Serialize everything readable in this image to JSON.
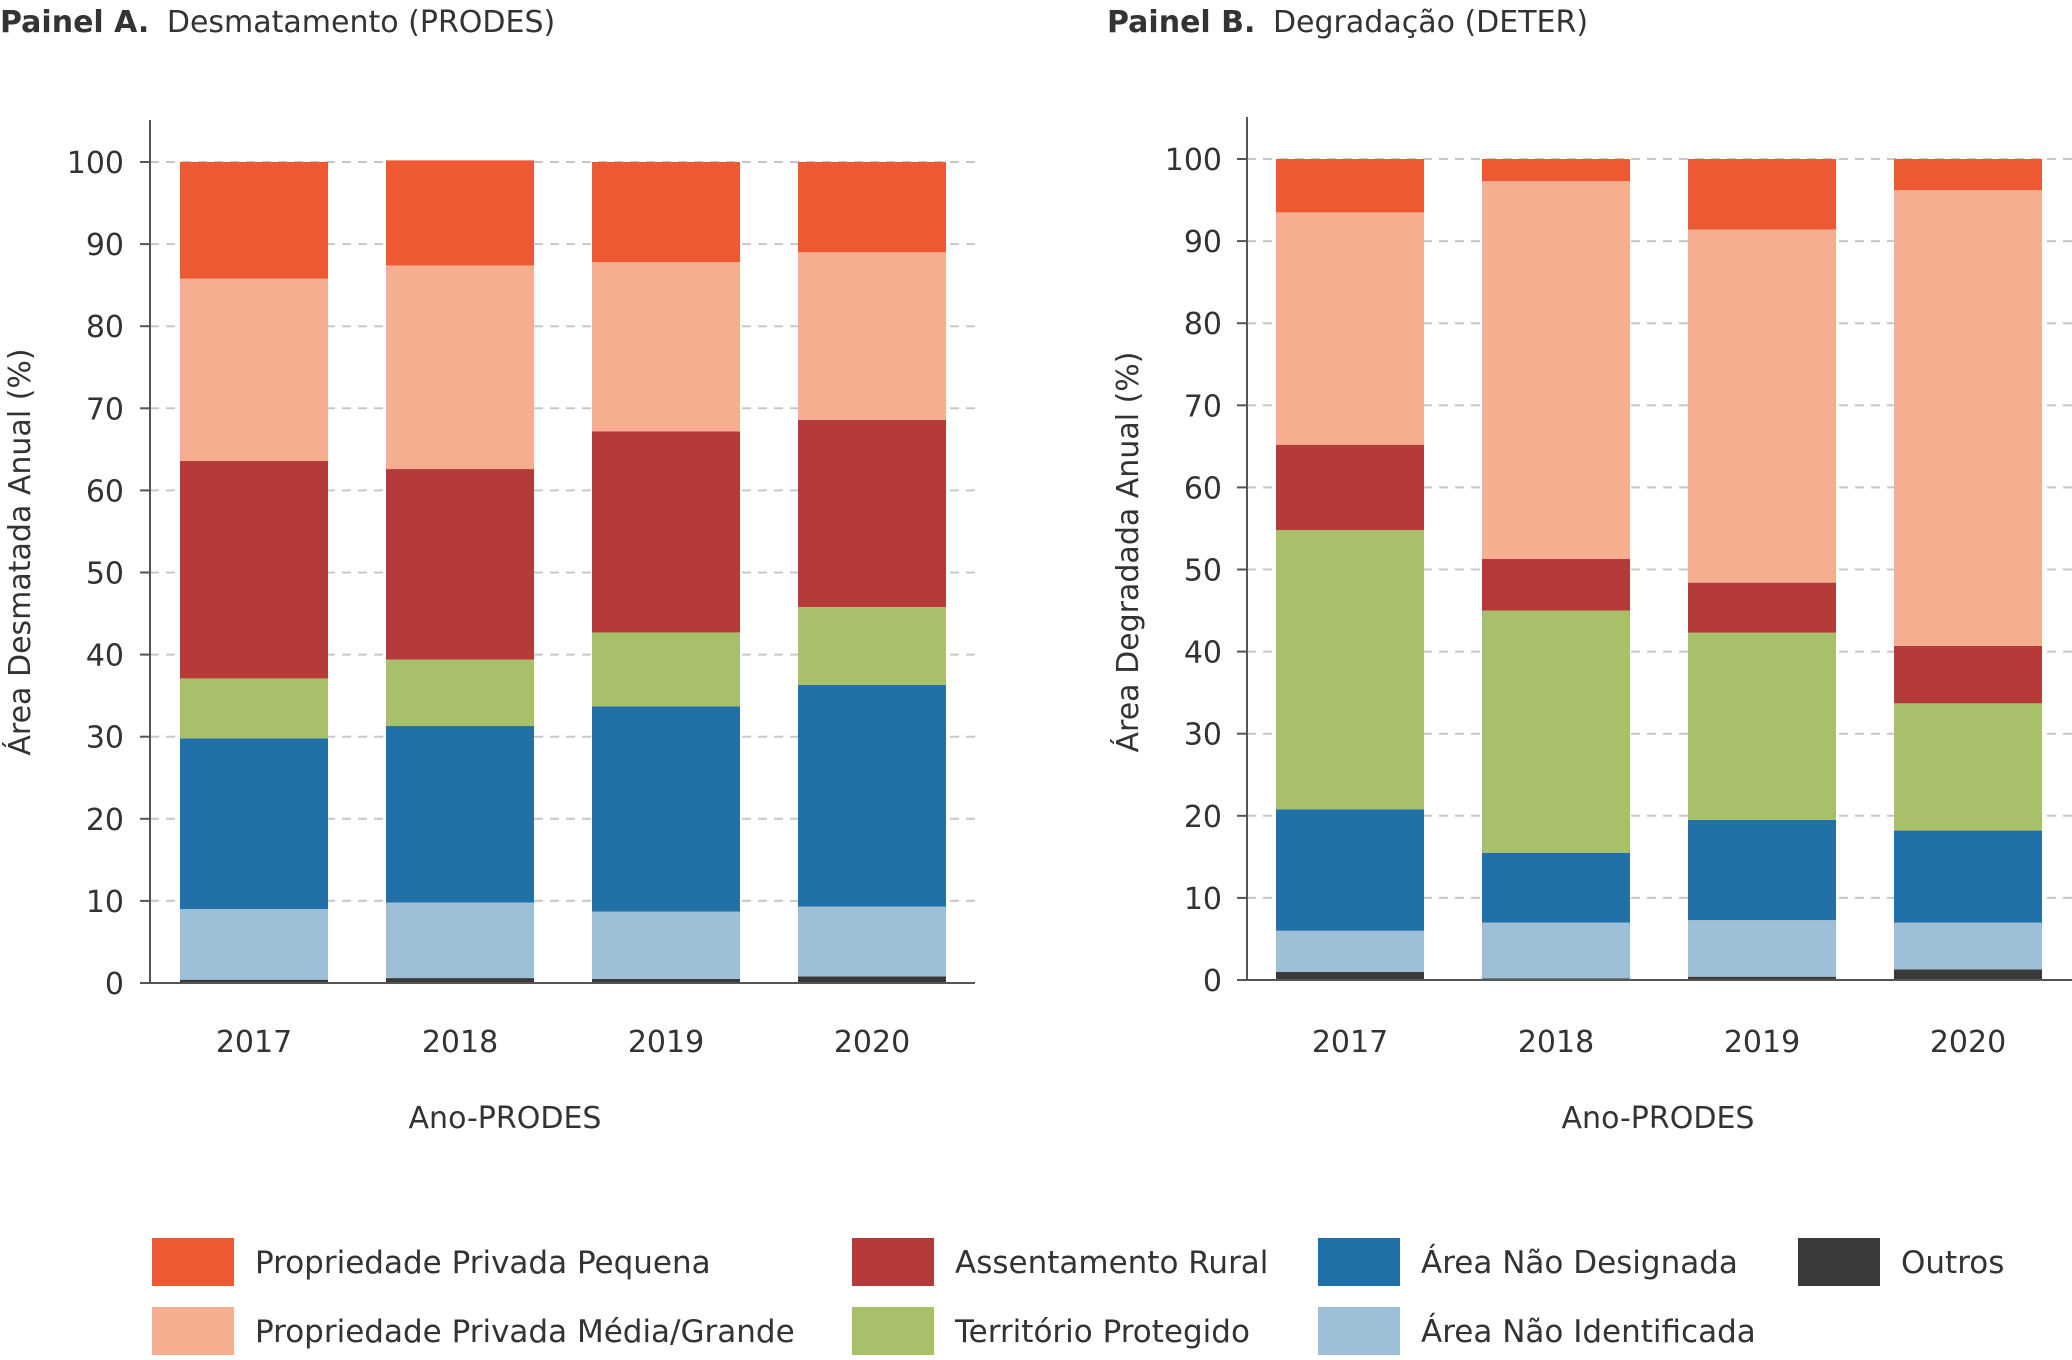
{
  "chart_data": [
    {
      "type": "bar",
      "stacked": true,
      "title_bold": "Painel A.",
      "title": "Desmatamento (PRODES)",
      "xlabel": "Ano-PRODES",
      "ylabel": "Área Desmatada Anual (%)",
      "ylim": [
        0,
        100
      ],
      "yticks": [
        0,
        10,
        20,
        30,
        40,
        50,
        60,
        70,
        80,
        90,
        100
      ],
      "grid": "horizontal-dashed",
      "categories": [
        "2017",
        "2018",
        "2019",
        "2020"
      ],
      "series": [
        {
          "name": "Outros",
          "color": "#3a3a3a",
          "values": [
            0.4,
            0.6,
            0.5,
            0.8
          ]
        },
        {
          "name": "Área Não Identificada",
          "color": "#9ebfd8",
          "values": [
            8.6,
            9.2,
            8.2,
            8.5
          ]
        },
        {
          "name": "Área Não Designada",
          "color": "#2170a8",
          "values": [
            20.8,
            21.5,
            25.0,
            27.0
          ]
        },
        {
          "name": "Território Protegido",
          "color": "#a9c06b",
          "values": [
            7.3,
            8.1,
            9.0,
            9.5
          ]
        },
        {
          "name": "Assentamento Rural",
          "color": "#b53a3a",
          "values": [
            26.5,
            23.2,
            24.5,
            22.8
          ]
        },
        {
          "name": "Propriedade Privada Média/Grande",
          "color": "#f6ae90",
          "values": [
            22.2,
            24.8,
            20.6,
            20.4
          ]
        },
        {
          "name": "Propriedade Privada Pequena",
          "color": "#ec5932",
          "values": [
            14.2,
            12.8,
            12.2,
            11.0
          ]
        }
      ]
    },
    {
      "type": "bar",
      "stacked": true,
      "title_bold": "Painel B.",
      "title": "Degradação (DETER)",
      "xlabel": "Ano-PRODES",
      "ylabel": "Área Degradada Anual (%)",
      "ylim": [
        0,
        100
      ],
      "yticks": [
        0,
        10,
        20,
        30,
        40,
        50,
        60,
        70,
        80,
        90,
        100
      ],
      "grid": "horizontal-dashed",
      "categories": [
        "2017",
        "2018",
        "2019",
        "2020"
      ],
      "series": [
        {
          "name": "Outros",
          "color": "#3a3a3a",
          "values": [
            1.0,
            0.2,
            0.4,
            1.3
          ]
        },
        {
          "name": "Área Não Identificada",
          "color": "#9ebfd8",
          "values": [
            5.0,
            6.8,
            6.9,
            5.7
          ]
        },
        {
          "name": "Área Não Designada",
          "color": "#2170a8",
          "values": [
            14.8,
            8.5,
            12.2,
            11.2
          ]
        },
        {
          "name": "Território Protegido",
          "color": "#a9c06b",
          "values": [
            34.0,
            29.5,
            22.8,
            15.5
          ]
        },
        {
          "name": "Assentamento Rural",
          "color": "#b53a3a",
          "values": [
            10.4,
            6.3,
            6.1,
            7.0
          ]
        },
        {
          "name": "Propriedade Privada Média/Grande",
          "color": "#f6ae90",
          "values": [
            28.3,
            46.0,
            43.0,
            55.5
          ]
        },
        {
          "name": "Propriedade Privada Pequena",
          "color": "#ec5932",
          "values": [
            6.5,
            2.7,
            8.6,
            3.8
          ]
        }
      ]
    }
  ],
  "legend": {
    "placement": "bottom",
    "items": [
      {
        "name": "Propriedade Privada Pequena",
        "color": "#ec5932"
      },
      {
        "name": "Assentamento Rural",
        "color": "#b53a3a"
      },
      {
        "name": "Área Não Designada",
        "color": "#2170a8"
      },
      {
        "name": "Outros",
        "color": "#3a3a3a"
      },
      {
        "name": "Propriedade Privada Média/Grande",
        "color": "#f6ae90"
      },
      {
        "name": "Território Protegido",
        "color": "#a9c06b"
      },
      {
        "name": "Área Não Identificada",
        "color": "#9ebfd8"
      }
    ]
  }
}
